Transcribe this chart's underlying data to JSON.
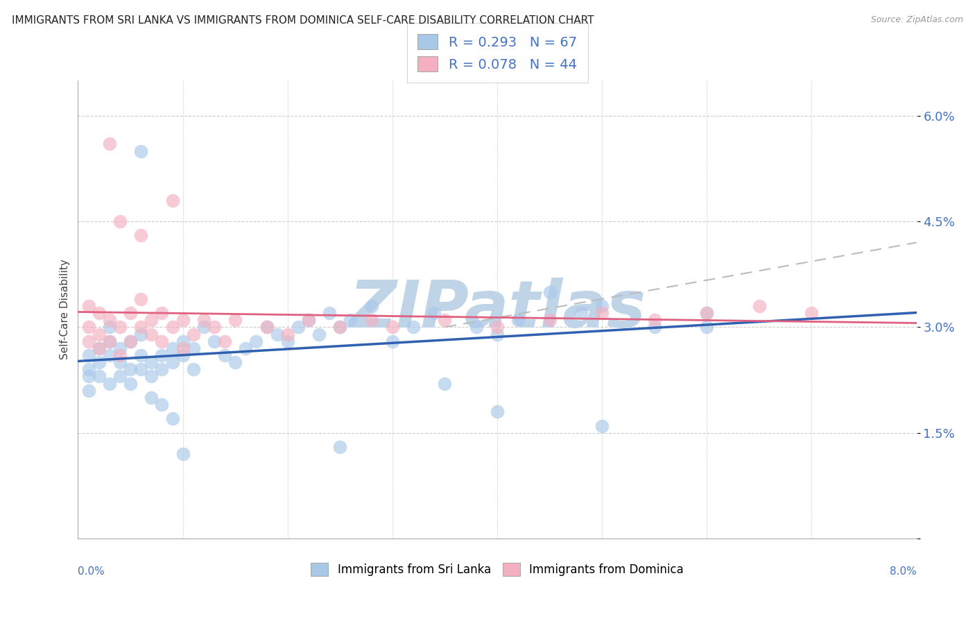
{
  "title": "IMMIGRANTS FROM SRI LANKA VS IMMIGRANTS FROM DOMINICA SELF-CARE DISABILITY CORRELATION CHART",
  "source": "Source: ZipAtlas.com",
  "ylabel": "Self-Care Disability",
  "xmin": 0.0,
  "xmax": 0.08,
  "ymin": 0.0,
  "ymax": 0.065,
  "ytick_vals": [
    0.0,
    0.015,
    0.03,
    0.045,
    0.06
  ],
  "ytick_labels": [
    "",
    "1.5%",
    "3.0%",
    "4.5%",
    "6.0%"
  ],
  "xtick_left_label": "0.0%",
  "xtick_right_label": "8.0%",
  "sri_lanka_R": 0.293,
  "sri_lanka_N": 67,
  "dominica_R": 0.078,
  "dominica_N": 44,
  "sri_lanka_scatter_color": "#a8c8e8",
  "dominica_scatter_color": "#f4b0c0",
  "sri_lanka_line_color": "#3060b0",
  "dominica_line_color": "#e06080",
  "dash_line_color": "#bbbbbb",
  "grid_color": "#cccccc",
  "watermark": "ZIPatlas",
  "watermark_color": "#c0d4e8",
  "legend_text_color": "#4472c4",
  "bottom_legend_labels": [
    "Immigrants from Sri Lanka",
    "Immigrants from Dominica"
  ],
  "sri_lanka_x": [
    0.001,
    0.001,
    0.001,
    0.001,
    0.002,
    0.002,
    0.002,
    0.003,
    0.003,
    0.003,
    0.003,
    0.004,
    0.004,
    0.004,
    0.005,
    0.005,
    0.005,
    0.006,
    0.006,
    0.006,
    0.007,
    0.007,
    0.008,
    0.008,
    0.009,
    0.009,
    0.01,
    0.01,
    0.011,
    0.011,
    0.012,
    0.013,
    0.014,
    0.015,
    0.016,
    0.017,
    0.018,
    0.019,
    0.02,
    0.021,
    0.022,
    0.023,
    0.024,
    0.025,
    0.026,
    0.028,
    0.03,
    0.032,
    0.034,
    0.038,
    0.04,
    0.042,
    0.045,
    0.048,
    0.05,
    0.055,
    0.06,
    0.04,
    0.05,
    0.06,
    0.025,
    0.035,
    0.007,
    0.008,
    0.009,
    0.01,
    0.006
  ],
  "sri_lanka_y": [
    0.024,
    0.026,
    0.023,
    0.021,
    0.025,
    0.023,
    0.027,
    0.028,
    0.026,
    0.03,
    0.022,
    0.025,
    0.023,
    0.027,
    0.024,
    0.028,
    0.022,
    0.026,
    0.024,
    0.029,
    0.025,
    0.023,
    0.026,
    0.024,
    0.027,
    0.025,
    0.026,
    0.028,
    0.024,
    0.027,
    0.03,
    0.028,
    0.026,
    0.025,
    0.027,
    0.028,
    0.03,
    0.029,
    0.028,
    0.03,
    0.031,
    0.029,
    0.032,
    0.03,
    0.031,
    0.033,
    0.028,
    0.03,
    0.032,
    0.03,
    0.029,
    0.031,
    0.035,
    0.032,
    0.033,
    0.03,
    0.032,
    0.018,
    0.016,
    0.03,
    0.013,
    0.022,
    0.02,
    0.019,
    0.017,
    0.012,
    0.055
  ],
  "dominica_x": [
    0.001,
    0.001,
    0.001,
    0.002,
    0.002,
    0.002,
    0.003,
    0.003,
    0.004,
    0.004,
    0.005,
    0.005,
    0.006,
    0.006,
    0.007,
    0.007,
    0.008,
    0.008,
    0.009,
    0.01,
    0.01,
    0.011,
    0.012,
    0.013,
    0.014,
    0.015,
    0.018,
    0.02,
    0.022,
    0.025,
    0.028,
    0.03,
    0.035,
    0.04,
    0.045,
    0.05,
    0.055,
    0.06,
    0.065,
    0.07,
    0.004,
    0.006,
    0.009,
    0.003
  ],
  "dominica_y": [
    0.03,
    0.028,
    0.033,
    0.027,
    0.029,
    0.032,
    0.028,
    0.031,
    0.026,
    0.03,
    0.032,
    0.028,
    0.03,
    0.034,
    0.029,
    0.031,
    0.028,
    0.032,
    0.03,
    0.027,
    0.031,
    0.029,
    0.031,
    0.03,
    0.028,
    0.031,
    0.03,
    0.029,
    0.031,
    0.03,
    0.031,
    0.03,
    0.031,
    0.03,
    0.031,
    0.032,
    0.031,
    0.032,
    0.033,
    0.032,
    0.045,
    0.043,
    0.048,
    0.056
  ]
}
